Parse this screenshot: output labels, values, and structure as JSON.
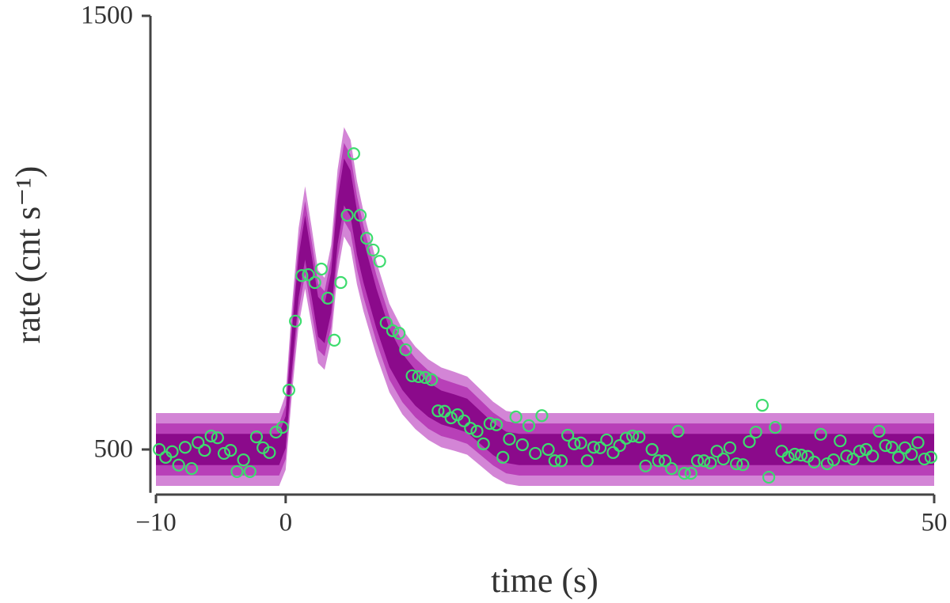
{
  "chart_data": {
    "type": "scatter",
    "xlabel": "time (s)",
    "ylabel": "rate (cnt s⁻¹)",
    "xlim": [
      -10,
      50
    ],
    "ylim": [
      400,
      1500
    ],
    "xticks": [
      {
        "value": -10,
        "label": "−10"
      },
      0,
      50
    ],
    "yticks": [
      500,
      1500
    ],
    "band_x": [
      -10,
      -5,
      -0.5,
      0,
      0.5,
      1,
      1.5,
      2,
      2.5,
      3,
      3.5,
      4,
      4.5,
      5,
      5.5,
      6,
      7,
      8,
      9,
      10,
      11,
      12,
      13,
      14,
      15,
      16,
      17,
      18,
      20,
      25,
      30,
      35,
      40,
      45,
      50
    ],
    "bands": [
      {
        "color": "#d385d6",
        "lower": [
          416,
          416,
          416,
          453,
          632,
          785,
          871,
          787,
          699,
          684,
          751,
          905,
          991,
          966,
          881,
          819,
          717,
          632,
          581,
          547,
          522,
          505,
          497,
          488,
          463,
          438,
          421,
          416,
          416,
          416,
          416,
          416,
          416,
          416,
          416
        ],
        "upper": [
          584,
          584,
          584,
          627,
          836,
          1011,
          1107,
          1013,
          913,
          896,
          971,
          1145,
          1243,
          1214,
          1119,
          1049,
          933,
          836,
          777,
          737,
          708,
          689,
          679,
          668,
          639,
          610,
          589,
          584,
          584,
          584,
          584,
          584,
          584,
          584,
          584
        ]
      },
      {
        "color": "#b840b8",
        "lower": [
          440,
          440,
          440,
          478,
          661,
          818,
          905,
          819,
          730,
          715,
          782,
          939,
          1027,
          1001,
          915,
          852,
          748,
          661,
          609,
          574,
          548,
          531,
          523,
          513,
          488,
          463,
          445,
          440,
          440,
          440,
          440,
          440,
          440,
          440,
          440
        ],
        "upper": [
          560,
          560,
          560,
          602,
          807,
          978,
          1073,
          981,
          882,
          865,
          940,
          1111,
          1207,
          1179,
          1085,
          1016,
          902,
          807,
          749,
          710,
          682,
          663,
          653,
          643,
          614,
          585,
          565,
          560,
          560,
          560,
          560,
          560,
          560,
          560,
          560
        ]
      },
      {
        "color": "#8b0a8b",
        "lower": [
          464,
          464,
          464,
          503,
          690,
          850,
          938,
          852,
          760,
          745,
          814,
          973,
          1063,
          1037,
          949,
          885,
          779,
          690,
          637,
          601,
          575,
          558,
          549,
          539,
          513,
          487,
          469,
          464,
          464,
          464,
          464,
          464,
          464,
          464,
          464
        ],
        "upper": [
          536,
          536,
          536,
          577,
          778,
          946,
          1040,
          948,
          852,
          835,
          908,
          1077,
          1171,
          1143,
          1051,
          983,
          871,
          778,
          721,
          683,
          655,
          636,
          627,
          617,
          589,
          561,
          541,
          536,
          536,
          536,
          536,
          536,
          536,
          536,
          536
        ]
      }
    ],
    "series": [
      {
        "color": "#3ddc6e",
        "x": [
          -9.75,
          -9.25,
          -8.75,
          -8.25,
          -7.75,
          -7.25,
          -6.75,
          -6.25,
          -5.75,
          -5.25,
          -4.75,
          -4.25,
          -3.75,
          -3.25,
          -2.75,
          -2.25,
          -1.75,
          -1.25,
          -0.75,
          -0.25,
          0.25,
          0.75,
          1.25,
          1.75,
          2.25,
          2.75,
          3.25,
          3.75,
          4.25,
          4.75,
          5.25,
          5.75,
          6.25,
          6.75,
          7.25,
          7.75,
          8.25,
          8.75,
          9.25,
          9.75,
          10.25,
          10.75,
          11.25,
          11.75,
          12.25,
          12.75,
          13.25,
          13.75,
          14.25,
          14.75,
          15.25,
          15.75,
          16.25,
          16.75,
          17.25,
          17.75,
          18.25,
          18.75,
          19.25,
          19.75,
          20.25,
          20.75,
          21.25,
          21.75,
          22.25,
          22.75,
          23.25,
          23.75,
          24.25,
          24.75,
          25.25,
          25.75,
          26.25,
          26.75,
          27.25,
          27.75,
          28.25,
          28.75,
          29.25,
          29.75,
          30.25,
          30.75,
          31.25,
          31.75,
          32.25,
          32.75,
          33.25,
          33.75,
          34.25,
          34.75,
          35.25,
          35.75,
          36.25,
          36.75,
          37.25,
          37.75,
          38.25,
          38.75,
          39.25,
          39.75,
          40.25,
          40.75,
          41.25,
          41.75,
          42.25,
          42.75,
          43.25,
          43.75,
          44.25,
          44.75,
          45.25,
          45.75,
          46.25,
          46.75,
          47.25,
          47.75,
          48.25,
          48.75,
          49.25,
          49.75
        ],
        "values": [
          500,
          482,
          495,
          464,
          505,
          456,
          516,
          498,
          531,
          527,
          491,
          498,
          449,
          476,
          449,
          529,
          504,
          493,
          540,
          551,
          637,
          796,
          901,
          903,
          885,
          916,
          849,
          752,
          885,
          1040,
          1182,
          1040,
          987,
          960,
          934,
          792,
          774,
          768,
          730,
          670,
          668,
          666,
          661,
          589,
          588,
          573,
          580,
          566,
          549,
          542,
          513,
          560,
          557,
          482,
          524,
          575,
          511,
          555,
          491,
          578,
          500,
          474,
          474,
          533,
          513,
          515,
          474,
          505,
          504,
          522,
          493,
          509,
          526,
          531,
          529,
          462,
          500,
          474,
          474,
          456,
          542,
          445,
          445,
          474,
          474,
          469,
          496,
          478,
          504,
          467,
          465,
          518,
          540,
          602,
          436,
          551,
          496,
          482,
          489,
          487,
          484,
          471,
          535,
          467,
          476,
          520,
          485,
          478,
          496,
          500,
          485,
          542,
          509,
          505,
          482,
          504,
          489,
          516,
          478,
          482
        ]
      }
    ]
  }
}
